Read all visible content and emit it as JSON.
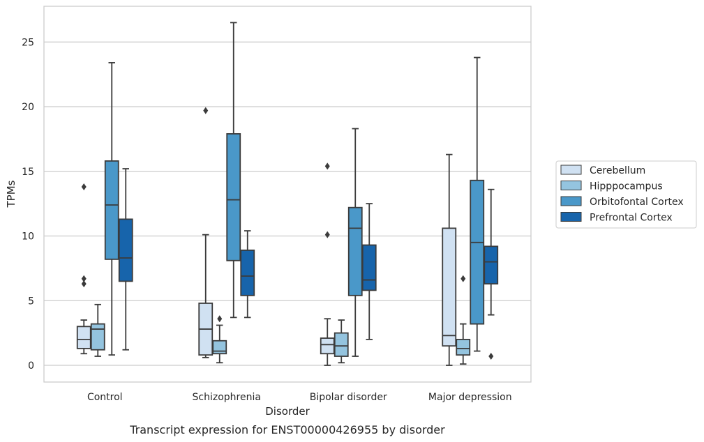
{
  "chart_data": {
    "type": "box",
    "title": "",
    "caption": "Transcript expression for ENST00000426955 by disorder",
    "xlabel": "Disorder",
    "ylabel": "TPMs",
    "ylim": [
      -1.2,
      27.8
    ],
    "yticks": [
      0,
      5,
      10,
      15,
      20,
      25
    ],
    "grid": "horizontal",
    "legend_position": "right",
    "categories": [
      "Control",
      "Schizophrenia",
      "Bipolar disorder",
      "Major depression"
    ],
    "series": [
      {
        "name": "Cerebellum",
        "color": "#d0e1f2",
        "boxes": [
          {
            "whisker_low": 0.9,
            "q1": 1.3,
            "median": 2.0,
            "q3": 3.0,
            "whisker_high": 3.5,
            "outliers": [
              6.3,
              6.7,
              13.8
            ]
          },
          {
            "whisker_low": 0.6,
            "q1": 0.8,
            "median": 2.8,
            "q3": 4.8,
            "whisker_high": 10.1,
            "outliers": [
              19.7
            ]
          },
          {
            "whisker_low": 0.0,
            "q1": 0.9,
            "median": 1.6,
            "q3": 2.1,
            "whisker_high": 3.6,
            "outliers": [
              10.1,
              15.4
            ]
          },
          {
            "whisker_low": 0.0,
            "q1": 1.5,
            "median": 2.3,
            "q3": 10.6,
            "whisker_high": 16.3,
            "outliers": []
          }
        ]
      },
      {
        "name": "Hipppocampus",
        "color": "#94c4df",
        "boxes": [
          {
            "whisker_low": 0.7,
            "q1": 1.2,
            "median": 2.8,
            "q3": 3.2,
            "whisker_high": 4.7,
            "outliers": []
          },
          {
            "whisker_low": 0.2,
            "q1": 0.9,
            "median": 1.1,
            "q3": 1.9,
            "whisker_high": 3.1,
            "outliers": [
              3.6
            ]
          },
          {
            "whisker_low": 0.2,
            "q1": 0.7,
            "median": 1.5,
            "q3": 2.5,
            "whisker_high": 3.5,
            "outliers": []
          },
          {
            "whisker_low": 0.1,
            "q1": 0.8,
            "median": 1.3,
            "q3": 2.0,
            "whisker_high": 3.2,
            "outliers": [
              6.7
            ]
          }
        ]
      },
      {
        "name": "Orbitofontal Cortex",
        "color": "#4a98c9",
        "boxes": [
          {
            "whisker_low": 0.8,
            "q1": 8.2,
            "median": 12.4,
            "q3": 15.8,
            "whisker_high": 23.4,
            "outliers": []
          },
          {
            "whisker_low": 3.7,
            "q1": 8.1,
            "median": 12.8,
            "q3": 17.9,
            "whisker_high": 26.5,
            "outliers": []
          },
          {
            "whisker_low": 0.7,
            "q1": 5.4,
            "median": 10.6,
            "q3": 12.2,
            "whisker_high": 18.3,
            "outliers": []
          },
          {
            "whisker_low": 1.1,
            "q1": 3.2,
            "median": 9.5,
            "q3": 14.3,
            "whisker_high": 23.8,
            "outliers": []
          }
        ]
      },
      {
        "name": "Prefrontal Cortex",
        "color": "#1764ab",
        "boxes": [
          {
            "whisker_low": 1.2,
            "q1": 6.5,
            "median": 8.3,
            "q3": 11.3,
            "whisker_high": 15.2,
            "outliers": []
          },
          {
            "whisker_low": 3.7,
            "q1": 5.4,
            "median": 6.9,
            "q3": 8.9,
            "whisker_high": 10.4,
            "outliers": []
          },
          {
            "whisker_low": 2.0,
            "q1": 5.8,
            "median": 6.6,
            "q3": 9.3,
            "whisker_high": 12.5,
            "outliers": []
          },
          {
            "whisker_low": 3.9,
            "q1": 6.3,
            "median": 8.0,
            "q3": 9.2,
            "whisker_high": 13.6,
            "outliers": [
              0.7
            ]
          }
        ]
      }
    ]
  }
}
